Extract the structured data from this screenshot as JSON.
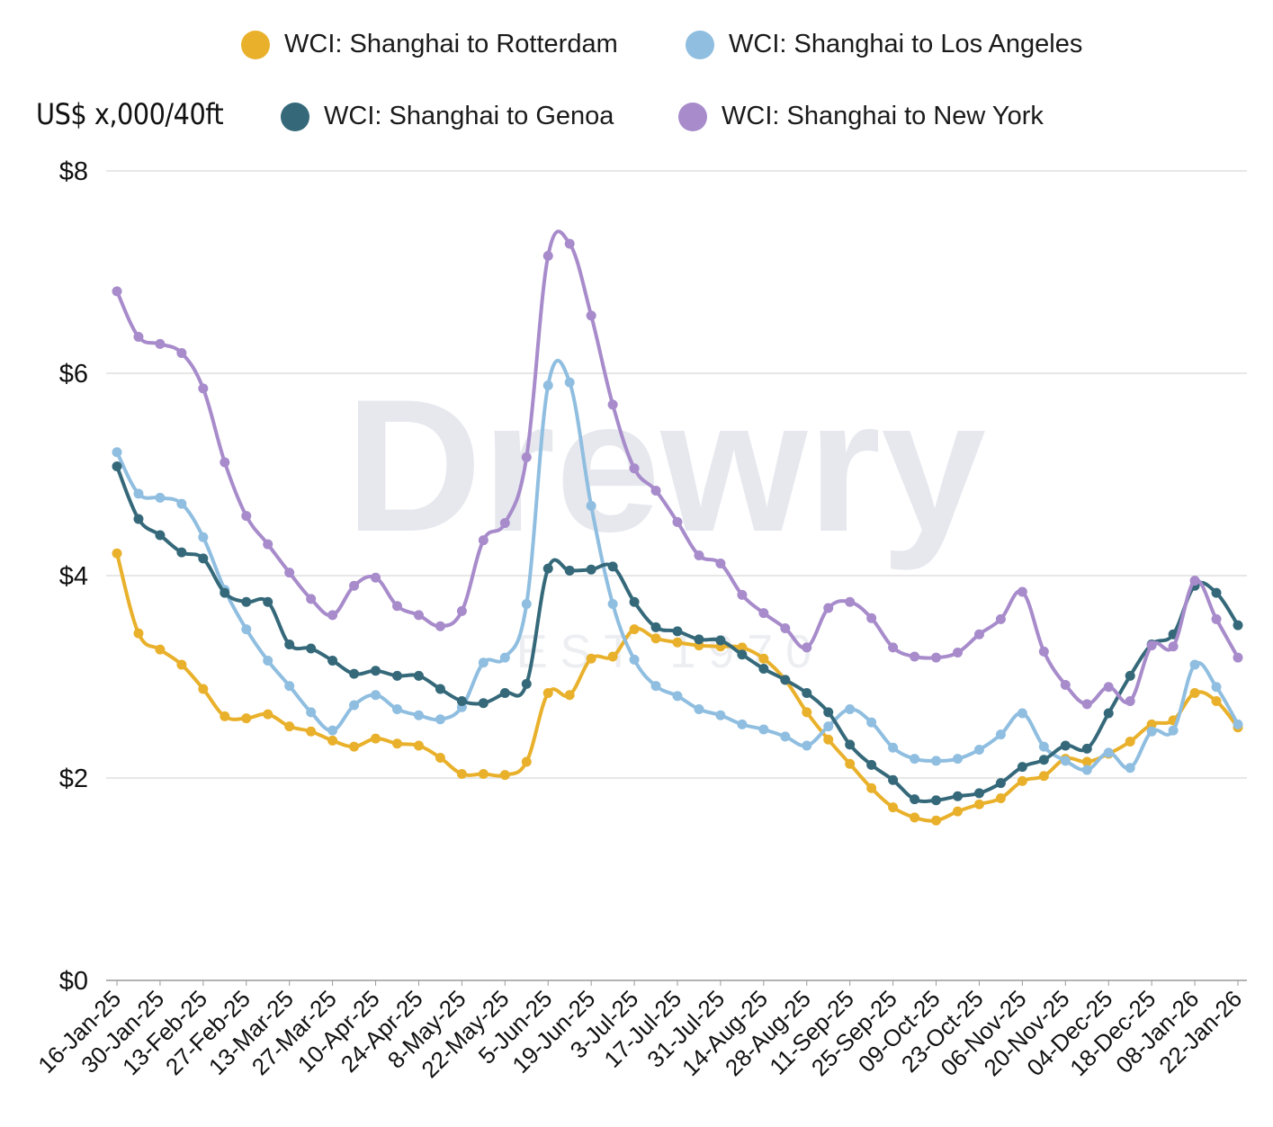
{
  "chart_data": {
    "type": "line",
    "title": "",
    "ylabel": "US$ x,000/40ft",
    "xlabel": "",
    "ylim": [
      0,
      8
    ],
    "y_ticks": [
      "$0",
      "$2",
      "$4",
      "$6",
      "$8"
    ],
    "y_tick_values": [
      0,
      2,
      4,
      6,
      8
    ],
    "grid": true,
    "legend_position": "top",
    "watermark": "Drewry",
    "watermark_sub": "EST 1970",
    "x_tick_labels": [
      "16-Jan-25",
      "30-Jan-25",
      "13-Feb-25",
      "27-Feb-25",
      "13-Mar-25",
      "27-Mar-25",
      "10-Apr-25",
      "24-Apr-25",
      "8-May-25",
      "22-May-25",
      "5-Jun-25",
      "19-Jun-25",
      "3-Jul-25",
      "17-Jul-25",
      "31-Jul-25",
      "14-Aug-25",
      "28-Aug-25",
      "11-Sep-25",
      "25-Sep-25",
      "09-Oct-25",
      "23-Oct-25",
      "06-Nov-25",
      "20-Nov-25",
      "04-Dec-25",
      "18-Dec-25",
      "08-Jan-26",
      "22-Jan-26"
    ],
    "series": [
      {
        "name": "WCI: Shanghai to Rotterdam",
        "color": "#E9B12B",
        "values": [
          4.22,
          3.43,
          3.27,
          3.12,
          2.88,
          2.61,
          2.59,
          2.63,
          2.51,
          2.46,
          2.37,
          2.31,
          2.39,
          2.34,
          2.32,
          2.2,
          2.04,
          2.04,
          2.03,
          2.16,
          2.84,
          2.82,
          3.18,
          3.2,
          3.47,
          3.38,
          3.34,
          3.31,
          3.3,
          3.29,
          3.18,
          2.97,
          2.65,
          2.38,
          2.14,
          1.9,
          1.71,
          1.61,
          1.58,
          1.67,
          1.74,
          1.8,
          1.97,
          2.02,
          2.19,
          2.16,
          2.24,
          2.36,
          2.53,
          2.57,
          2.84,
          2.76,
          2.5
        ]
      },
      {
        "name": "WCI: Shanghai to Los Angeles",
        "color": "#8FBEE0",
        "values": [
          5.22,
          4.81,
          4.77,
          4.71,
          4.38,
          3.86,
          3.47,
          3.16,
          2.91,
          2.65,
          2.47,
          2.72,
          2.82,
          2.68,
          2.62,
          2.58,
          2.7,
          3.14,
          3.19,
          3.72,
          5.88,
          5.91,
          4.69,
          3.72,
          3.17,
          2.91,
          2.81,
          2.68,
          2.62,
          2.53,
          2.48,
          2.41,
          2.32,
          2.51,
          2.68,
          2.55,
          2.3,
          2.19,
          2.17,
          2.19,
          2.28,
          2.43,
          2.64,
          2.31,
          2.17,
          2.08,
          2.25,
          2.1,
          2.46,
          2.47,
          3.12,
          2.9,
          2.53
        ]
      },
      {
        "name": "WCI: Shanghai to Genoa",
        "color": "#35697A",
        "values": [
          5.08,
          4.56,
          4.4,
          4.23,
          4.17,
          3.83,
          3.74,
          3.74,
          3.32,
          3.28,
          3.16,
          3.03,
          3.06,
          3.01,
          3.01,
          2.88,
          2.76,
          2.74,
          2.84,
          2.93,
          4.07,
          4.05,
          4.06,
          4.09,
          3.74,
          3.49,
          3.45,
          3.37,
          3.36,
          3.22,
          3.08,
          2.97,
          2.84,
          2.65,
          2.33,
          2.13,
          1.98,
          1.79,
          1.78,
          1.82,
          1.85,
          1.95,
          2.11,
          2.18,
          2.32,
          2.29,
          2.64,
          3.01,
          3.32,
          3.42,
          3.9,
          3.83,
          3.51
        ]
      },
      {
        "name": "WCI: Shanghai to New York",
        "color": "#A78BCB",
        "values": [
          6.81,
          6.36,
          6.29,
          6.2,
          5.85,
          5.12,
          4.59,
          4.31,
          4.03,
          3.77,
          3.61,
          3.9,
          3.98,
          3.7,
          3.61,
          3.5,
          3.65,
          4.35,
          4.52,
          5.17,
          7.16,
          7.28,
          6.57,
          5.69,
          5.06,
          4.84,
          4.53,
          4.2,
          4.12,
          3.81,
          3.63,
          3.48,
          3.29,
          3.68,
          3.74,
          3.58,
          3.29,
          3.2,
          3.19,
          3.24,
          3.42,
          3.57,
          3.84,
          3.25,
          2.92,
          2.73,
          2.9,
          2.76,
          3.31,
          3.3,
          3.95,
          3.57,
          3.19
        ]
      }
    ]
  }
}
